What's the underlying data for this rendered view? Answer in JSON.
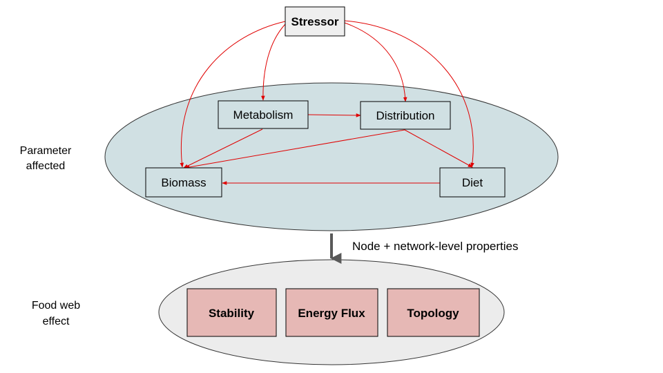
{
  "diagram": {
    "stressor": "Stressor",
    "parameter_label_line1": "Parameter",
    "parameter_label_line2": "affected",
    "parameters": {
      "metabolism": "Metabolism",
      "distribution": "Distribution",
      "biomass": "Biomass",
      "diet": "Diet"
    },
    "transition_label": "Node + network-level properties",
    "foodweb_label_line1": "Food web",
    "foodweb_label_line2": "effect",
    "effects": {
      "stability": "Stability",
      "energy_flux": "Energy Flux",
      "topology": "Topology"
    },
    "colors": {
      "ellipse_top": "#d0e0e3",
      "ellipse_bottom": "#ececec",
      "effect_box": "#e6b8b5",
      "stressor_box": "#efefef",
      "arrow_red": "#e00000",
      "arrow_gray": "#595959"
    }
  }
}
